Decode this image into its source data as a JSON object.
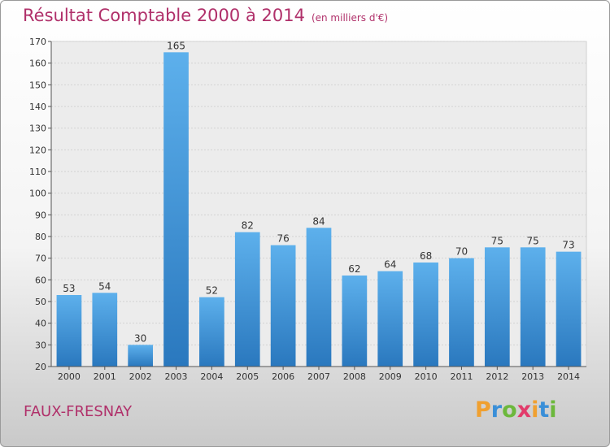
{
  "header": {
    "title": "Résultat Comptable 2000 à 2014",
    "subtitle": "(en milliers d'€)"
  },
  "footer": {
    "town": "FAUX-FRESNAY",
    "logo": {
      "letters": [
        "P",
        "r",
        "o",
        "x",
        "i",
        "t",
        "i"
      ],
      "colors": [
        "#f0a030",
        "#3a8fd8",
        "#6cb83c",
        "#e23b6b",
        "#f0a030",
        "#3a8fd8",
        "#6cb83c"
      ]
    }
  },
  "chart_data": {
    "type": "bar",
    "title": "Résultat Comptable 2000 à 2014",
    "subtitle": "(en milliers d'€)",
    "xlabel": "",
    "ylabel": "",
    "categories": [
      "2000",
      "2001",
      "2002",
      "2003",
      "2004",
      "2005",
      "2006",
      "2007",
      "2008",
      "2009",
      "2010",
      "2011",
      "2012",
      "2013",
      "2014"
    ],
    "values": [
      53,
      54,
      30,
      165,
      52,
      82,
      76,
      84,
      62,
      64,
      68,
      70,
      75,
      75,
      73
    ],
    "data_labels": [
      "53",
      "54",
      "30",
      "165",
      "52",
      "82",
      "76",
      "84",
      "62",
      "64",
      "68",
      "70",
      "75",
      "75",
      "73"
    ],
    "ylim": [
      20,
      170
    ],
    "yticks": [
      20,
      30,
      40,
      50,
      60,
      70,
      80,
      90,
      100,
      110,
      120,
      130,
      140,
      150,
      160,
      170
    ],
    "grid": true,
    "bar_color": "#3d8fd6"
  }
}
